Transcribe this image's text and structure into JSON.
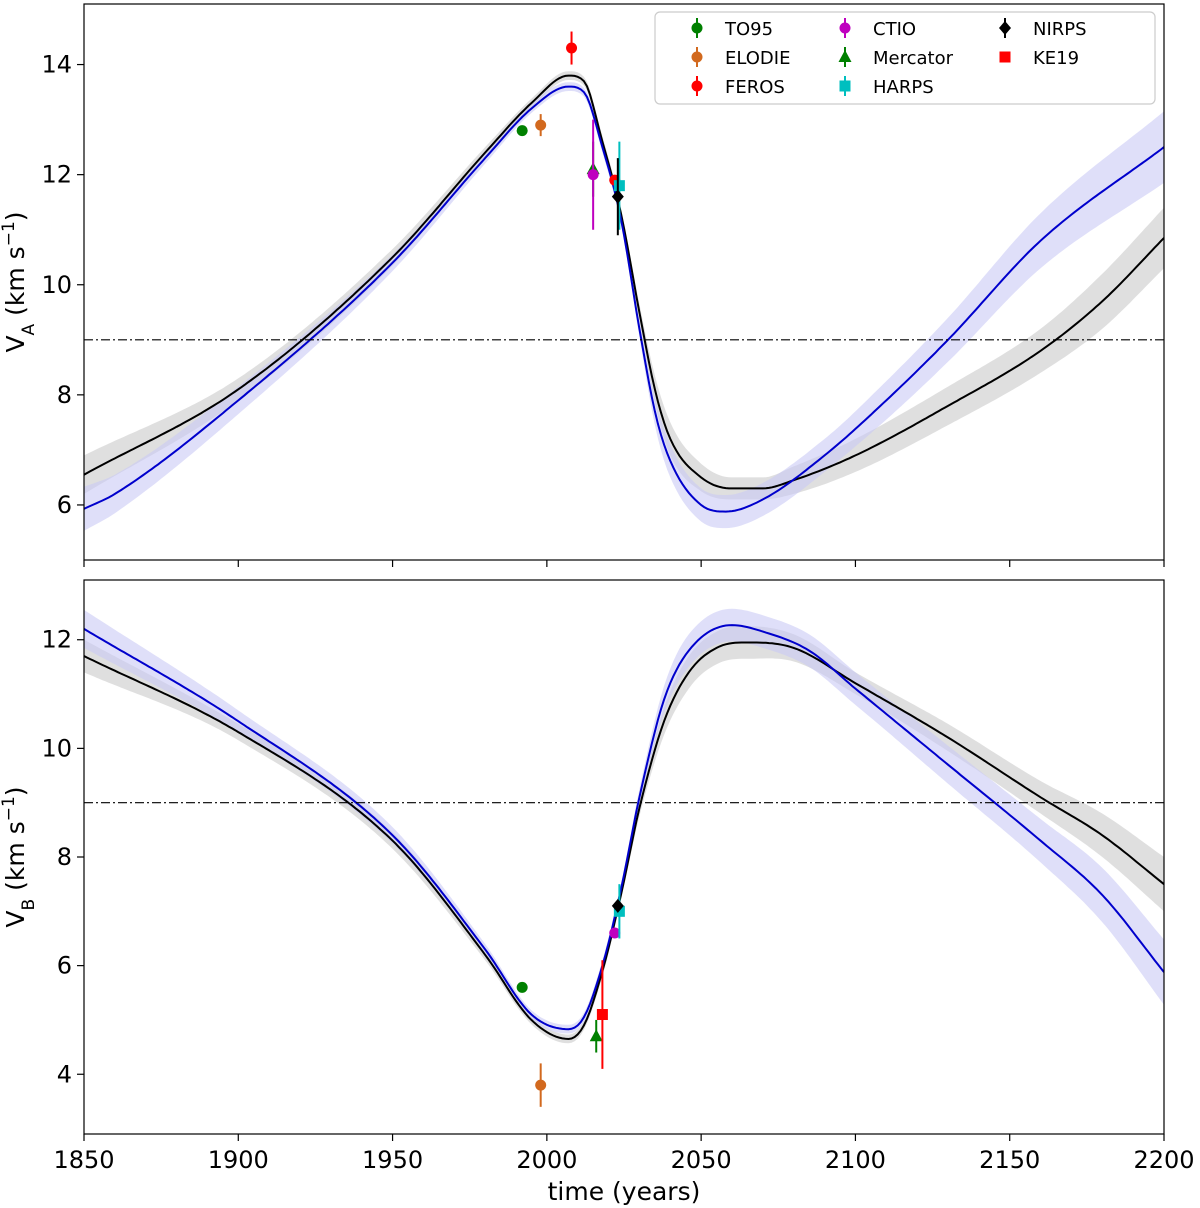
{
  "chart_data": [
    {
      "type": "line",
      "panel": "top",
      "ylabel": {
        "base": "V",
        "sub": "A",
        "unit": " (km s",
        "sup": "−1",
        "close": ")"
      },
      "xlabel": "",
      "xlim": [
        1850,
        2200
      ],
      "ylim": [
        5,
        15.1
      ],
      "yticks": [
        6,
        8,
        10,
        12,
        14
      ],
      "xticks": [
        1850,
        1900,
        1950,
        2000,
        2050,
        2100,
        2150,
        2200
      ],
      "show_xtick_labels": false,
      "hline": 9,
      "series": [
        {
          "color": "#000000",
          "band_color": "#d9d9d9",
          "points": [
            [
              1850,
              6.55,
              0.35
            ],
            [
              1900,
              8.1,
              0.2
            ],
            [
              1950,
              10.5,
              0.15
            ],
            [
              1980,
              12.4,
              0.1
            ],
            [
              1995,
              13.3,
              0.08
            ],
            [
              2007,
              13.8,
              0.08
            ],
            [
              2012,
              13.7,
              0.08
            ],
            [
              2018,
              12.6,
              0.1
            ],
            [
              2024,
              11.3,
              0.1
            ],
            [
              2030,
              9.5,
              0.15
            ],
            [
              2035,
              8.1,
              0.25
            ],
            [
              2040,
              7.2,
              0.3
            ],
            [
              2050,
              6.5,
              0.25
            ],
            [
              2060,
              6.3,
              0.2
            ],
            [
              2070,
              6.3,
              0.2
            ],
            [
              2080,
              6.45,
              0.25
            ],
            [
              2100,
              6.9,
              0.3
            ],
            [
              2130,
              7.8,
              0.35
            ],
            [
              2160,
              8.8,
              0.4
            ],
            [
              2180,
              9.7,
              0.5
            ],
            [
              2200,
              10.85,
              0.55
            ]
          ]
        },
        {
          "color": "#0000cc",
          "band_color": "#c9c9f5",
          "points": [
            [
              1850,
              5.93,
              0.4
            ],
            [
              1860,
              6.2,
              0.35
            ],
            [
              1900,
              7.9,
              0.25
            ],
            [
              1950,
              10.4,
              0.15
            ],
            [
              1980,
              12.3,
              0.1
            ],
            [
              1995,
              13.2,
              0.08
            ],
            [
              2007,
              13.6,
              0.08
            ],
            [
              2012,
              13.5,
              0.08
            ],
            [
              2018,
              12.5,
              0.1
            ],
            [
              2024,
              11.2,
              0.1
            ],
            [
              2030,
              9.2,
              0.15
            ],
            [
              2035,
              7.7,
              0.25
            ],
            [
              2040,
              6.8,
              0.3
            ],
            [
              2050,
              6.0,
              0.3
            ],
            [
              2058,
              5.88,
              0.3
            ],
            [
              2070,
              6.1,
              0.3
            ],
            [
              2090,
              6.9,
              0.3
            ],
            [
              2110,
              7.9,
              0.35
            ],
            [
              2130,
              9.0,
              0.4
            ],
            [
              2160,
              10.8,
              0.5
            ],
            [
              2200,
              12.5,
              0.65
            ]
          ]
        }
      ],
      "observations": [
        {
          "x": 1992,
          "y": 12.8,
          "err": 0.0,
          "marker": "o",
          "color": "#008000"
        },
        {
          "x": 1998,
          "y": 12.9,
          "err": 0.2,
          "marker": "o",
          "color": "#d2691e"
        },
        {
          "x": 2008,
          "y": 14.3,
          "err": 0.3,
          "marker": "o",
          "color": "#ff0000"
        },
        {
          "x": 2015,
          "y": 12.1,
          "err": 0.5,
          "marker": "^",
          "color": "#008000"
        },
        {
          "x": 2015,
          "y": 12.0,
          "err": 1.0,
          "marker": "o",
          "color": "#bf00bf"
        },
        {
          "x": 2022,
          "y": 11.9,
          "err": 0.0,
          "marker": "o",
          "color": "#ff0000"
        },
        {
          "x": 2023.5,
          "y": 11.8,
          "err": 0.8,
          "marker": "s",
          "color": "#00bfbf"
        },
        {
          "x": 2023,
          "y": 11.6,
          "err": 0.7,
          "marker": "D",
          "color": "#000000"
        }
      ],
      "legend": {
        "placement": "top-right",
        "entries": [
          {
            "label": "TO95",
            "marker": "o",
            "color": "#008000"
          },
          {
            "label": "ELODIE",
            "marker": "o",
            "color": "#d2691e"
          },
          {
            "label": "FEROS",
            "marker": "o",
            "color": "#ff0000"
          },
          {
            "label": "CTIO",
            "marker": "o",
            "color": "#bf00bf"
          },
          {
            "label": "Mercator",
            "marker": "^",
            "color": "#008000"
          },
          {
            "label": "HARPS",
            "marker": "s",
            "color": "#00bfbf"
          },
          {
            "label": "NIRPS",
            "marker": "D",
            "color": "#000000"
          },
          {
            "label": "KE19",
            "marker": "s",
            "color": "#ff0000"
          }
        ]
      }
    },
    {
      "type": "line",
      "panel": "bottom",
      "ylabel": {
        "base": "V",
        "sub": "B",
        "unit": " (km s",
        "sup": "−1",
        "close": ")"
      },
      "xlabel": "time (years)",
      "xlim": [
        1850,
        2200
      ],
      "ylim": [
        2.9,
        13.1
      ],
      "yticks": [
        4,
        6,
        8,
        10,
        12
      ],
      "xticks": [
        1850,
        1900,
        1950,
        2000,
        2050,
        2100,
        2150,
        2200
      ],
      "show_xtick_labels": true,
      "hline": 9,
      "series": [
        {
          "color": "#000000",
          "band_color": "#d9d9d9",
          "points": [
            [
              1850,
              11.7,
              0.3
            ],
            [
              1900,
              10.3,
              0.15
            ],
            [
              1950,
              8.3,
              0.15
            ],
            [
              1980,
              6.2,
              0.1
            ],
            [
              1995,
              5.0,
              0.08
            ],
            [
              2007,
              4.65,
              0.08
            ],
            [
              2012,
              4.9,
              0.08
            ],
            [
              2018,
              5.9,
              0.1
            ],
            [
              2024,
              7.3,
              0.1
            ],
            [
              2030,
              8.9,
              0.15
            ],
            [
              2038,
              10.5,
              0.25
            ],
            [
              2046,
              11.4,
              0.3
            ],
            [
              2055,
              11.85,
              0.3
            ],
            [
              2065,
              11.95,
              0.3
            ],
            [
              2080,
              11.85,
              0.25
            ],
            [
              2100,
              11.2,
              0.2
            ],
            [
              2130,
              10.2,
              0.25
            ],
            [
              2160,
              9.1,
              0.3
            ],
            [
              2180,
              8.4,
              0.4
            ],
            [
              2200,
              7.5,
              0.5
            ]
          ]
        },
        {
          "color": "#0000cc",
          "band_color": "#c9c9f5",
          "points": [
            [
              1850,
              12.2,
              0.35
            ],
            [
              1900,
              10.5,
              0.2
            ],
            [
              1950,
              8.4,
              0.15
            ],
            [
              1980,
              6.3,
              0.1
            ],
            [
              1995,
              5.1,
              0.08
            ],
            [
              2007,
              4.83,
              0.08
            ],
            [
              2012,
              5.05,
              0.08
            ],
            [
              2018,
              6.0,
              0.1
            ],
            [
              2024,
              7.4,
              0.1
            ],
            [
              2030,
              9.1,
              0.15
            ],
            [
              2038,
              10.9,
              0.25
            ],
            [
              2046,
              11.8,
              0.3
            ],
            [
              2060,
              12.27,
              0.3
            ],
            [
              2070,
              12.15,
              0.3
            ],
            [
              2085,
              11.8,
              0.3
            ],
            [
              2100,
              11.1,
              0.3
            ],
            [
              2130,
              9.7,
              0.35
            ],
            [
              2160,
              8.3,
              0.4
            ],
            [
              2180,
              7.3,
              0.5
            ],
            [
              2200,
              5.88,
              0.6
            ]
          ]
        }
      ],
      "observations": [
        {
          "x": 1992,
          "y": 5.6,
          "err": 0.0,
          "marker": "o",
          "color": "#008000"
        },
        {
          "x": 1998,
          "y": 3.8,
          "err": 0.4,
          "marker": "o",
          "color": "#d2691e"
        },
        {
          "x": 2016,
          "y": 4.7,
          "err": 0.3,
          "marker": "^",
          "color": "#008000"
        },
        {
          "x": 2018,
          "y": 5.1,
          "err": 1.0,
          "marker": "s",
          "color": "#ff0000"
        },
        {
          "x": 2022,
          "y": 6.6,
          "err": 0.0,
          "marker": "o",
          "color": "#bf00bf"
        },
        {
          "x": 2023.5,
          "y": 7.0,
          "err": 0.5,
          "marker": "s",
          "color": "#00bfbf"
        },
        {
          "x": 2023,
          "y": 7.1,
          "err": 0.0,
          "marker": "D",
          "color": "#000000"
        }
      ]
    }
  ]
}
